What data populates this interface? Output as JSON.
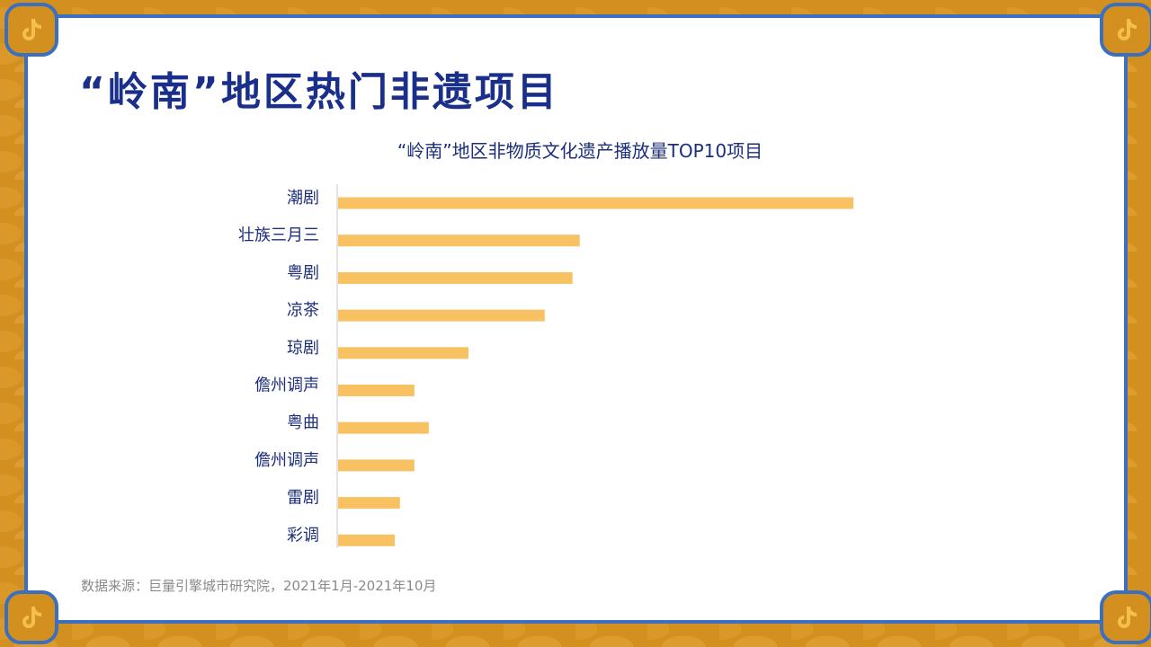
{
  "page": {
    "title": "“岭南”地区热门非遗项目",
    "source": "数据来源：巨量引擎城市研究院，2021年1月-2021年10月",
    "corner_icon": "tiktok-note-icon",
    "colors": {
      "border": "#3b6fbf",
      "background": "#d4901e",
      "bar": "#f8c263",
      "title": "#1a2f8a"
    }
  },
  "chart_data": {
    "type": "bar",
    "orientation": "horizontal",
    "title": "“岭南”地区非物质文化遗产播放量TOP10项目",
    "xlabel": "",
    "ylabel": "",
    "categories": [
      "潮剧",
      "壮族三月三",
      "粤剧",
      "凉茶",
      "琼剧",
      "儋州调声",
      "粤曲",
      "儋州调声",
      "雷剧",
      "彩调"
    ],
    "values": [
      100,
      46.9,
      45.5,
      40.1,
      25.3,
      14.8,
      17.6,
      14.8,
      12.0,
      11.0
    ],
    "xlim": [
      0,
      100
    ],
    "grid": false,
    "legend": "none"
  }
}
